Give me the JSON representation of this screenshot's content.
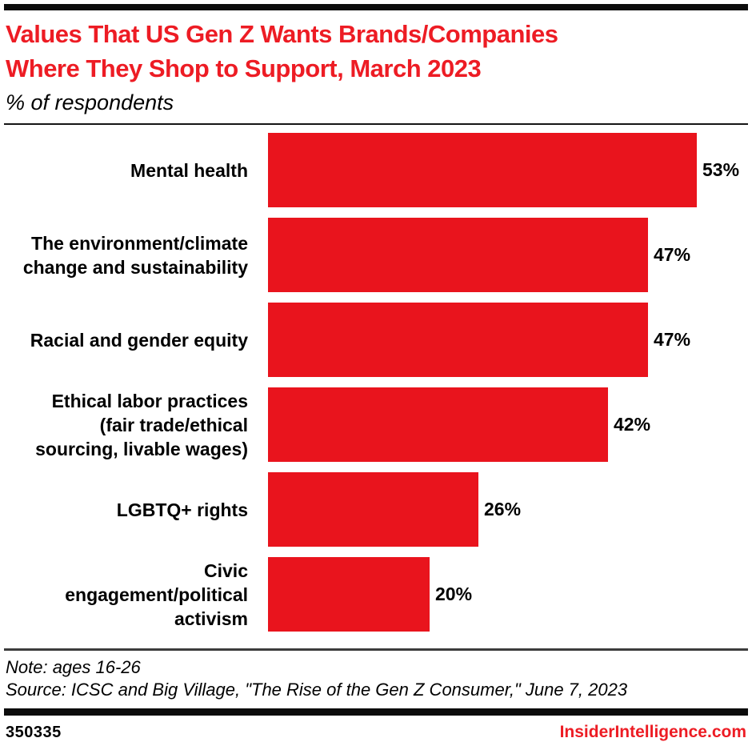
{
  "header": {
    "title_lines": [
      "Values That US Gen Z Wants Brands/Companies",
      "Where They Shop to Support, March 2023"
    ],
    "subtitle": "% of respondents"
  },
  "chart_data": {
    "type": "bar",
    "orientation": "horizontal",
    "unit": "% of respondents",
    "categories": [
      "Mental health",
      "The environment/climate change and sustainability",
      "Racial and gender equity",
      "Ethical labor practices (fair trade/ethical sourcing, livable wages)",
      "LGBTQ+ rights",
      "Civic engagement/political activism"
    ],
    "category_lines": [
      [
        "Mental health"
      ],
      [
        "The environment/climate",
        "change and sustainability"
      ],
      [
        "Racial and gender equity"
      ],
      [
        "Ethical labor practices",
        "(fair trade/ethical",
        "sourcing, livable wages)"
      ],
      [
        "LGBTQ+ rights"
      ],
      [
        "Civic",
        "engagement/political",
        "activism"
      ]
    ],
    "values": [
      53,
      47,
      47,
      42,
      26,
      20
    ],
    "value_labels": [
      "53%",
      "47%",
      "47%",
      "42%",
      "26%",
      "20%"
    ],
    "xlim": [
      0,
      59
    ],
    "bar_color": "#e9141d",
    "grid": false,
    "legend": false
  },
  "footer": {
    "note": "Note: ages 16-26",
    "source": "Source: ICSC and Big Village, \"The Rise of the Gen Z Consumer,\" June 7, 2023",
    "chart_id": "350335",
    "brand": "InsiderIntelligence.com"
  },
  "colors": {
    "accent_red": "#ed1c24",
    "bar_red": "#e9141d",
    "rule_black": "#0c0c0c"
  }
}
